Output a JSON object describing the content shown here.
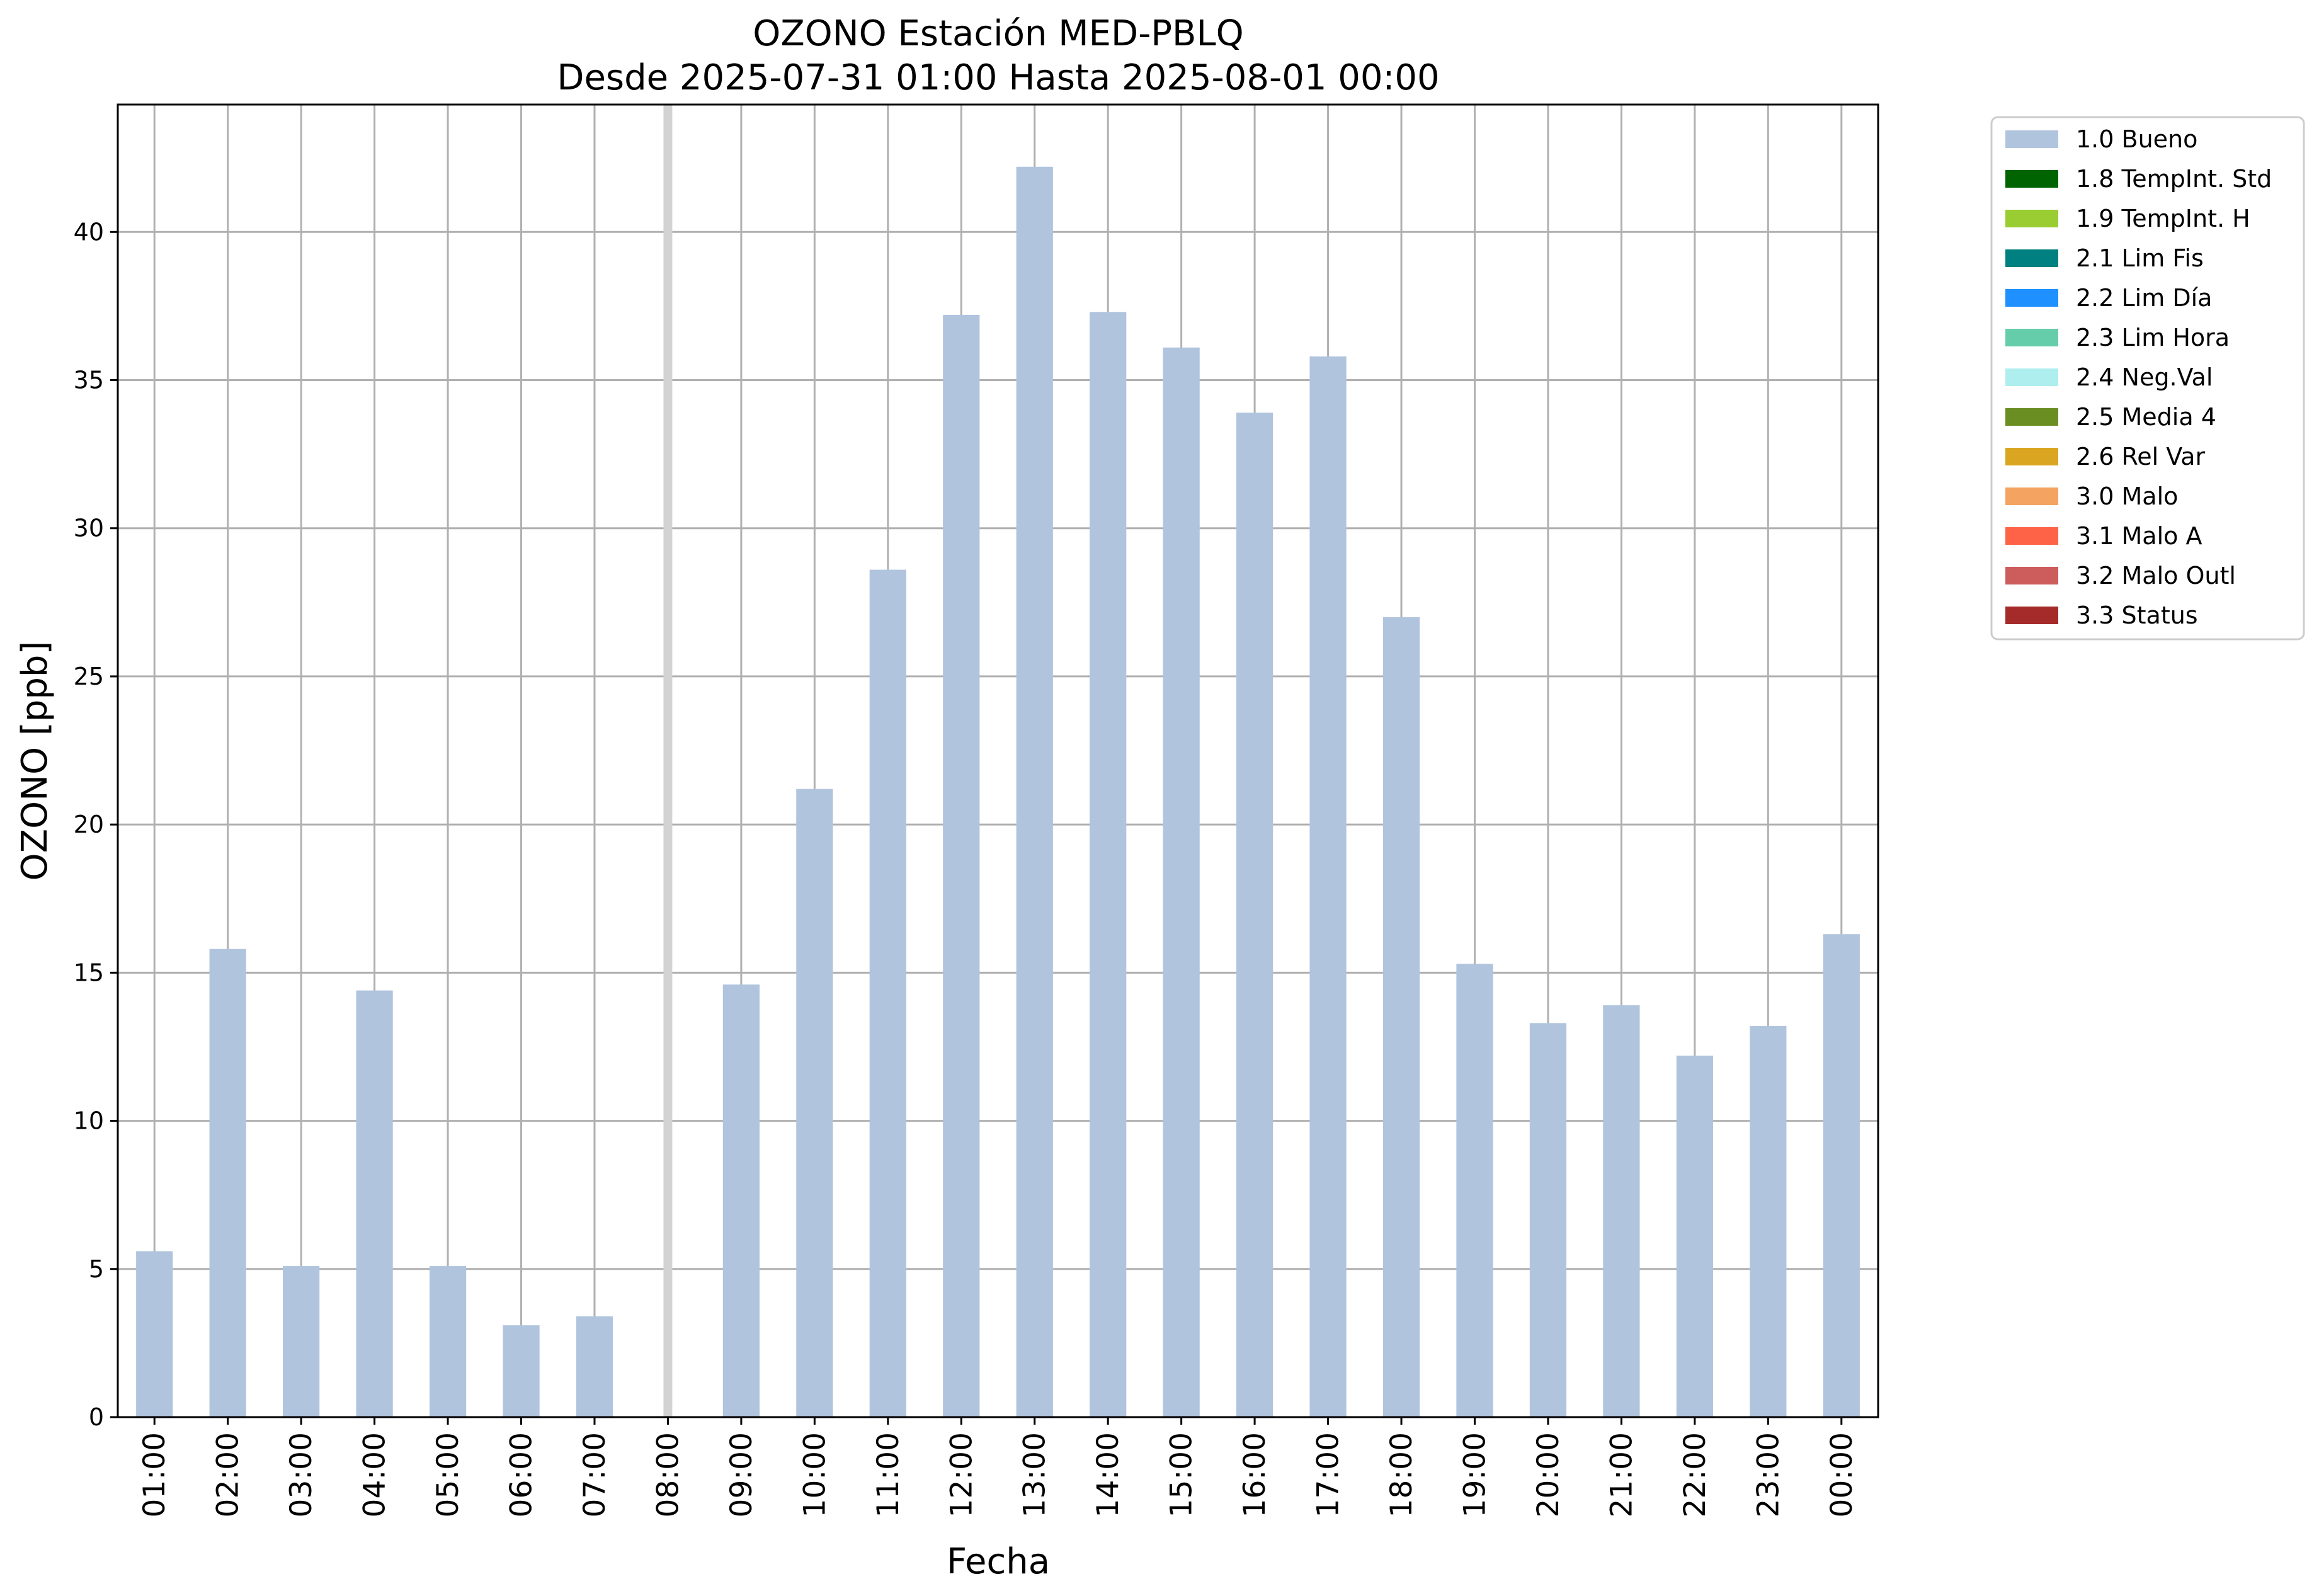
{
  "chart_data": {
    "type": "bar",
    "title": "OZONO Estación MED-PBLQ",
    "subtitle": "Desde 2025-07-31 01:00 Hasta 2025-08-01 00:00",
    "xlabel": "Fecha",
    "ylabel": "OZONO [ppb]",
    "ylim": [
      0,
      44.3
    ],
    "yticks": [
      0,
      5,
      10,
      15,
      20,
      25,
      30,
      35,
      40
    ],
    "grid": true,
    "legend_position": "outside-top-right",
    "categories": [
      "01:00",
      "02:00",
      "03:00",
      "04:00",
      "05:00",
      "06:00",
      "07:00",
      "08:00",
      "09:00",
      "10:00",
      "11:00",
      "12:00",
      "13:00",
      "14:00",
      "15:00",
      "16:00",
      "17:00",
      "18:00",
      "19:00",
      "20:00",
      "21:00",
      "22:00",
      "23:00",
      "00:00"
    ],
    "series": [
      {
        "name": "1.0 Bueno",
        "color": "#b0c4de",
        "values": [
          5.6,
          15.8,
          5.1,
          14.4,
          5.1,
          3.1,
          3.4,
          null,
          14.6,
          21.2,
          28.6,
          37.2,
          42.2,
          37.3,
          36.1,
          33.9,
          35.8,
          27.0,
          15.3,
          13.3,
          13.9,
          12.2,
          13.2,
          16.3
        ]
      }
    ],
    "missing_marker": {
      "category": "08:00",
      "color": "#d3d3d3"
    },
    "legend": [
      {
        "label": "1.0 Bueno",
        "color": "#b0c4de"
      },
      {
        "label": "1.8 TempInt. Std",
        "color": "#006400"
      },
      {
        "label": "1.9 TempInt. H",
        "color": "#9acd32"
      },
      {
        "label": "2.1 Lim Fis",
        "color": "#008080"
      },
      {
        "label": "2.2 Lim Día",
        "color": "#1e90ff"
      },
      {
        "label": "2.3 Lim Hora",
        "color": "#66cdaa"
      },
      {
        "label": "2.4 Neg.Val",
        "color": "#afeeee"
      },
      {
        "label": "2.5 Media 4",
        "color": "#6b8e23"
      },
      {
        "label": "2.6 Rel Var",
        "color": "#daa520"
      },
      {
        "label": "3.0 Malo",
        "color": "#f4a460"
      },
      {
        "label": "3.1 Malo A",
        "color": "#ff6347"
      },
      {
        "label": "3.2 Malo Outl",
        "color": "#cd5c5c"
      },
      {
        "label": "3.3 Status",
        "color": "#a52a2a"
      }
    ]
  }
}
